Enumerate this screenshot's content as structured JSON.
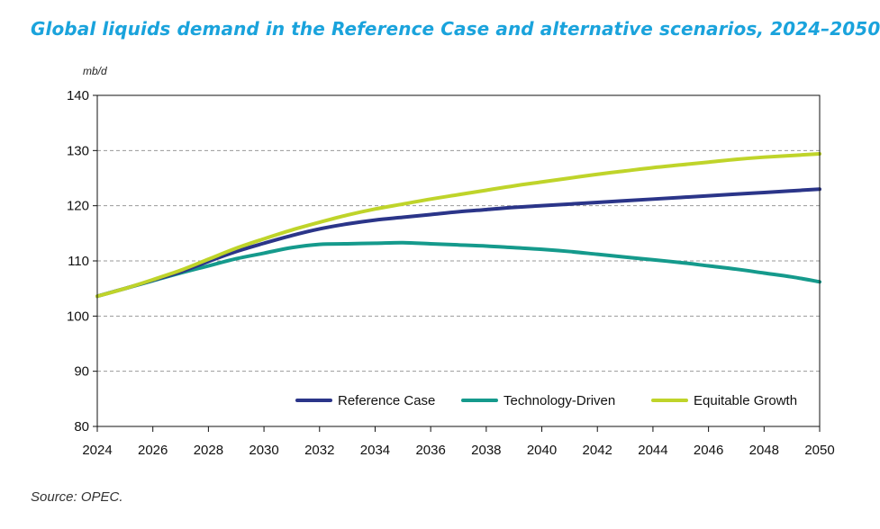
{
  "title": "Global liquids demand in the Reference Case and alternative scenarios, 2024–2050",
  "source": "Source: OPEC.",
  "chart_data": {
    "type": "line",
    "title": "Global liquids demand in the Reference Case and alternative scenarios, 2024–2050",
    "ylabel": "mb/d",
    "xlabel": "",
    "xlim": [
      2024,
      2050
    ],
    "ylim": [
      80,
      140
    ],
    "x_ticks": [
      "2024",
      "2026",
      "2028",
      "2030",
      "2032",
      "2034",
      "2036",
      "2038",
      "2040",
      "2042",
      "2044",
      "2046",
      "2048",
      "2050"
    ],
    "y_ticks": [
      "80",
      "90",
      "100",
      "110",
      "120",
      "130",
      "140"
    ],
    "grid": "horizontal dashed",
    "legend_position": "bottom-right",
    "x": [
      2024,
      2025,
      2026,
      2027,
      2028,
      2029,
      2030,
      2031,
      2032,
      2033,
      2034,
      2035,
      2036,
      2037,
      2038,
      2039,
      2040,
      2041,
      2042,
      2043,
      2044,
      2045,
      2046,
      2047,
      2048,
      2049,
      2050
    ],
    "series": [
      {
        "name": "Reference Case",
        "color": "#2b3589",
        "values": [
          103.6,
          105.0,
          106.5,
          108.0,
          109.9,
          111.7,
          113.2,
          114.6,
          115.8,
          116.7,
          117.4,
          117.9,
          118.4,
          118.9,
          119.3,
          119.7,
          120.0,
          120.3,
          120.6,
          120.9,
          121.2,
          121.5,
          121.8,
          122.1,
          122.4,
          122.7,
          123.0
        ]
      },
      {
        "name": "Technology-Driven",
        "color": "#159a8c",
        "values": [
          103.6,
          105.0,
          106.4,
          107.8,
          109.1,
          110.4,
          111.4,
          112.4,
          113.0,
          113.1,
          113.2,
          113.3,
          113.1,
          112.9,
          112.7,
          112.4,
          112.1,
          111.7,
          111.2,
          110.7,
          110.2,
          109.7,
          109.1,
          108.5,
          107.8,
          107.1,
          106.2
        ]
      },
      {
        "name": "Equitable Growth",
        "color": "#bfd42a",
        "values": [
          103.6,
          105.0,
          106.6,
          108.3,
          110.3,
          112.3,
          114.0,
          115.6,
          117.0,
          118.3,
          119.4,
          120.3,
          121.2,
          122.0,
          122.8,
          123.6,
          124.3,
          125.0,
          125.7,
          126.3,
          126.9,
          127.4,
          127.9,
          128.4,
          128.8,
          129.1,
          129.4
        ]
      }
    ]
  }
}
